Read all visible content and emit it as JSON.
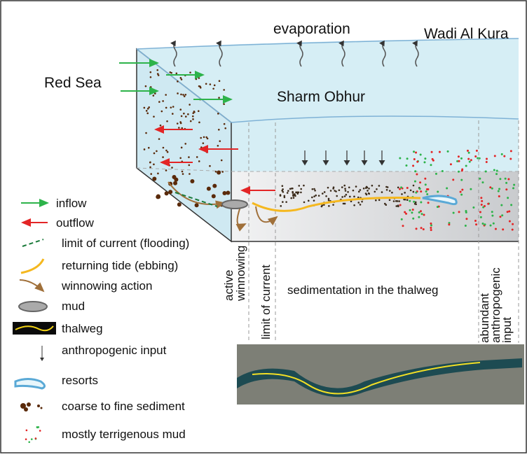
{
  "labels": {
    "evaporation": "evaporation",
    "wadi": "Wadi Al Kura",
    "red_sea": "Red Sea",
    "sharm": "Sharm Obhur"
  },
  "zones": [
    {
      "lines": [
        "active",
        "winnowing"
      ]
    },
    {
      "lines": [
        "limit of current"
      ]
    },
    {
      "lines": [
        "sedimentation in the thalweg"
      ]
    },
    {
      "lines": [
        "abundant",
        "anthropogenic",
        "input"
      ]
    }
  ],
  "legend": [
    "inflow",
    "outflow",
    "limit of current (flooding)",
    "returning tide (ebbing)",
    "winnowing action",
    "mud",
    "thalweg",
    "anthropogenic input",
    "resorts",
    "coarse to fine sediment",
    "mostly terrigenous mud"
  ]
}
